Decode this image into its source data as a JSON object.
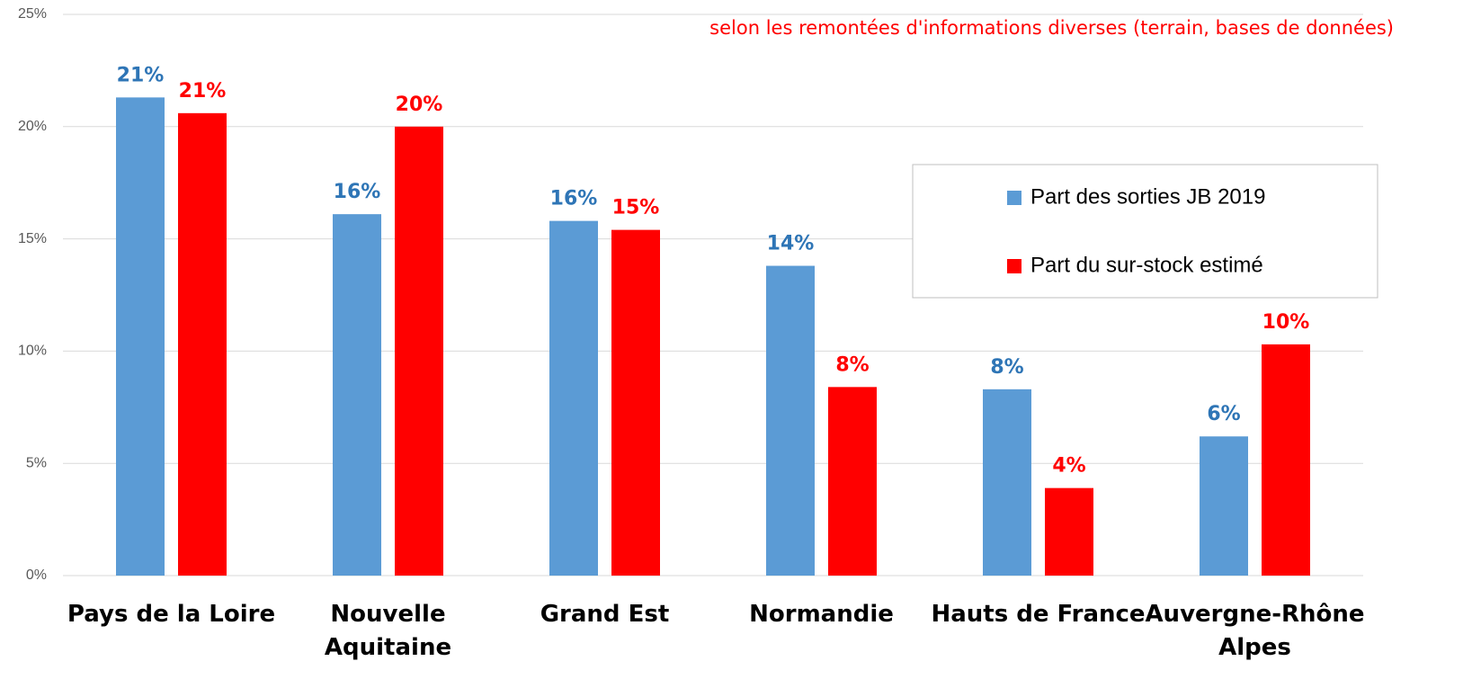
{
  "chart_data": {
    "type": "bar",
    "subtitle": "selon les remontées d'informations diverses (terrain, bases de données)",
    "categories": [
      "Pays de la Loire",
      "Nouvelle\nAquitaine",
      "Grand Est",
      "Normandie",
      "Hauts de France",
      "Auvergne-Rhône\nAlpes"
    ],
    "series": [
      {
        "name": "Part des sorties JB 2019",
        "color": "#5b9bd5",
        "label_color": "#2e75b6",
        "values": [
          21.3,
          16.1,
          15.8,
          13.8,
          8.3,
          6.2
        ],
        "value_labels": [
          "21%",
          "16%",
          "16%",
          "14%",
          "8%",
          "6%"
        ]
      },
      {
        "name": "Part du sur-stock estimé",
        "color": "#ff0000",
        "label_color": "#ff0000",
        "values": [
          20.6,
          20.0,
          15.4,
          8.4,
          3.9,
          10.3
        ],
        "value_labels": [
          "21%",
          "20%",
          "15%",
          "8%",
          "4%",
          "10%"
        ]
      }
    ],
    "ylim": [
      0,
      25
    ],
    "yticks": [
      {
        "value": 0,
        "label": "0%"
      },
      {
        "value": 5,
        "label": "5%"
      },
      {
        "value": 10,
        "label": "10%"
      },
      {
        "value": 15,
        "label": "15%"
      },
      {
        "value": 20,
        "label": "20%"
      },
      {
        "value": 25,
        "label": "25%"
      }
    ],
    "grid": true,
    "legend": "right"
  }
}
